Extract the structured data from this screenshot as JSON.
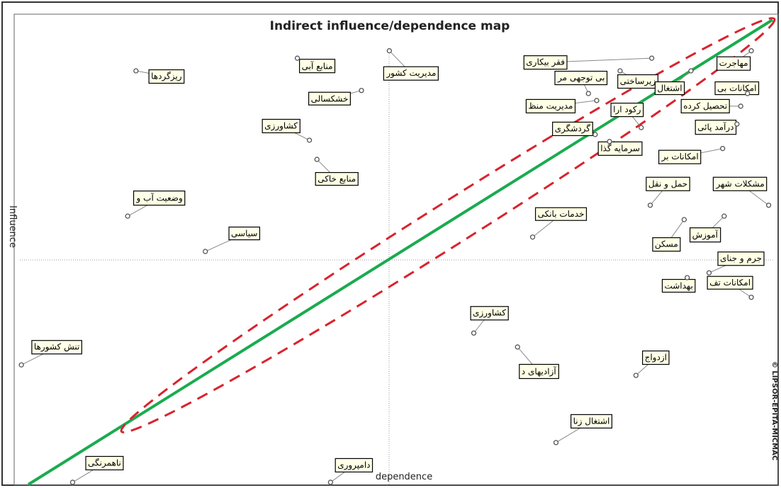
{
  "chart_data": {
    "type": "scatter",
    "title": "Indirect influence/dependence map",
    "x_label": "dependence",
    "y_label": "Influence",
    "note": "© LIPSOR-EPITA-MICMAC",
    "xlim": [
      0,
      100
    ],
    "ylim": [
      0,
      100
    ],
    "color": "#555555",
    "labels": [
      "ریزگردها",
      "منابع آبی",
      "مدیریت کشور",
      "کشاورزی",
      "خشکسالی",
      "منابع خاکی",
      "وضعیت آب و",
      "سیاسی",
      "تنش کشورها",
      "ناهمرنگی",
      "دامپروری",
      "فقر بیکاری",
      "بی توجهی مر",
      "مدیریت منظ",
      "گردشگری",
      "زیرساختی",
      "رکود ارا",
      "مهاجرت",
      "اشتغال",
      "امکانات بی",
      "تحصیل کرده",
      "درآمد پائی",
      "سرمایه گذا",
      "امکانات بر",
      "حمل و نقل",
      "مشکلات شهر",
      "خدمات بانکی",
      "آموزش",
      "مسکن",
      "جرم و جنای",
      "بهداشت",
      "امکانات تف",
      "کشاورزی",
      "ازدواج",
      "آزادیهای د",
      "اشتغال زنا"
    ],
    "x": [
      15.4,
      36.8,
      49.0,
      38.4,
      45.3,
      39.4,
      14.3,
      24.6,
      0.2,
      7.0,
      41.2,
      83.8,
      75.4,
      76.5,
      76.3,
      79.6,
      82.4,
      97.0,
      89.0,
      96.5,
      95.6,
      95.1,
      78.2,
      93.2,
      83.6,
      99.3,
      68.0,
      93.4,
      88.1,
      91.4,
      88.5,
      97.0,
      60.2,
      81.7,
      66.0,
      71.1
    ],
    "y": [
      94.8,
      97.7,
      99.4,
      78.9,
      90.3,
      74.5,
      61.5,
      53.4,
      27.4,
      0.5,
      0.5,
      97.7,
      89.6,
      88.0,
      80.2,
      94.8,
      81.8,
      99.4,
      94.8,
      89.6,
      86.7,
      82.6,
      78.6,
      77.0,
      64.0,
      64.0,
      56.7,
      61.5,
      60.7,
      48.5,
      47.4,
      42.9,
      34.7,
      25.0,
      31.5,
      9.6
    ]
  }
}
